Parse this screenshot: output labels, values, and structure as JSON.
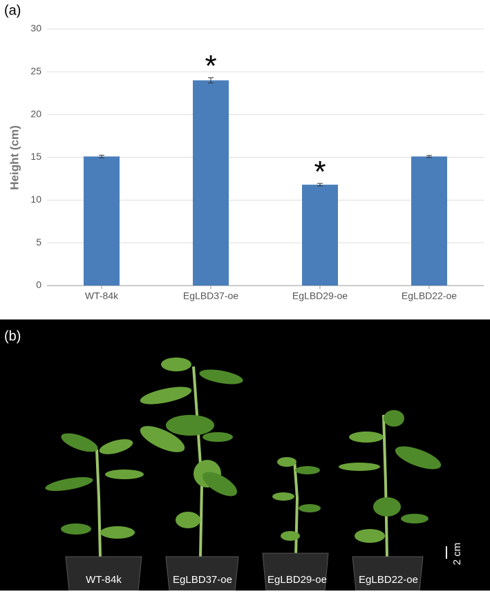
{
  "chart_data": {
    "type": "bar",
    "ylabel": "Height (cm)",
    "categories": [
      "WT-84k",
      "EgLBD37-oe",
      "EgLBD29-oe",
      "EgLBD22-oe"
    ],
    "values": [
      15.1,
      24.0,
      11.8,
      15.1
    ],
    "errors": [
      0.15,
      0.3,
      0.15,
      0.12
    ],
    "annotations": [
      null,
      "*",
      "*",
      null
    ],
    "color": "#4a7ebb",
    "ylim": [
      0,
      30
    ],
    "yticks": [
      0,
      5,
      10,
      15,
      20,
      25,
      30
    ],
    "grid": true
  },
  "figure": {
    "panel_a_label": "(a)",
    "panel_b_label": "(b)",
    "photo_labels": [
      "WT-84k",
      "EgLBD37-oe",
      "EgLBD29-oe",
      "EgLBD22-oe"
    ],
    "scale_bar": "2 cm"
  }
}
